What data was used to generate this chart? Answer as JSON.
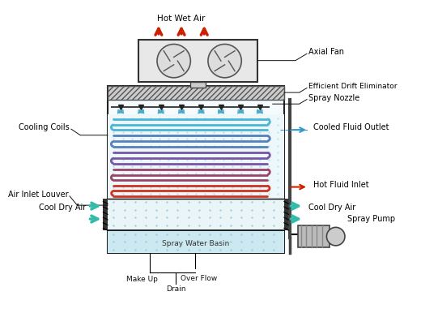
{
  "bg_color": "#ffffff",
  "water_color": "#cce8f0",
  "coil_colors_top": [
    "#4ab8d8",
    "#5599cc"
  ],
  "coil_colors_mid": [
    "#7755aa",
    "#994466"
  ],
  "coil_colors_bot": [
    "#cc3322"
  ],
  "spray_color": "#44aacc",
  "arrow_red": "#cc2200",
  "arrow_teal": "#33bbaa",
  "labels": {
    "hot_wet_air": "Hot Wet Air",
    "axial_fan": "Axial Fan",
    "drift_elim": "Efficient Drift Eliminator",
    "spray_nozzle": "Spray Nozzle",
    "cooling_coils": "Cooling Coils",
    "cooled_fluid": "Cooled Fluid Outlet",
    "air_inlet": "Air Inlet Louver",
    "hot_fluid": "Hot Fluid Inlet",
    "cool_dry_left": "Cool Dry Air",
    "cool_dry_right": "Cool Dry Air",
    "spray_basin": "Spray Water Basin",
    "makeup": "Make Up",
    "overflow": "Over Flow",
    "drain": "Drain",
    "spray_pump": "Spray Pump"
  }
}
